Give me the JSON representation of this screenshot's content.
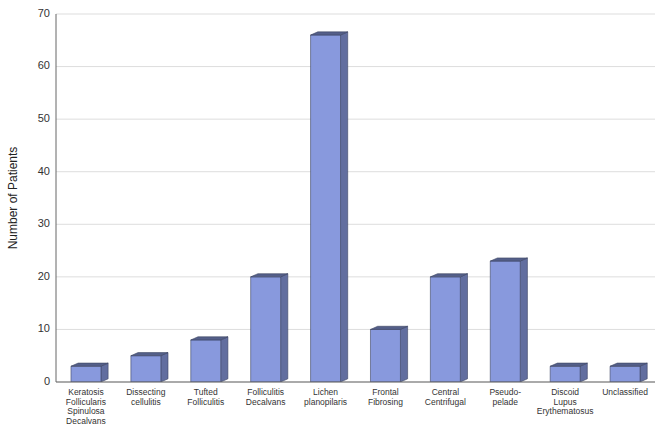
{
  "chart_data": {
    "type": "bar",
    "categories": [
      "Keratosis\nFollicularis\nSpinulosa\nDecalvans",
      "Dissecting\ncellulitis",
      "Tufted\nFolliculitis",
      "Folliculitis\nDecalvans",
      "Lichen\nplanopilaris",
      "Frontal\nFibrosing",
      "Central\nCentrifugal",
      "Pseudo-\npelade",
      "Discoid\nLupus\nErythematosus",
      "Unclassified"
    ],
    "values": [
      3,
      5,
      8,
      20,
      66,
      10,
      20,
      23,
      3,
      3
    ],
    "color": "#8899dd",
    "ylabel": "Number of Patients",
    "ylim": [
      0,
      70
    ],
    "yticks": [
      0,
      10,
      20,
      30,
      40,
      50,
      60,
      70
    ],
    "grid": true
  }
}
